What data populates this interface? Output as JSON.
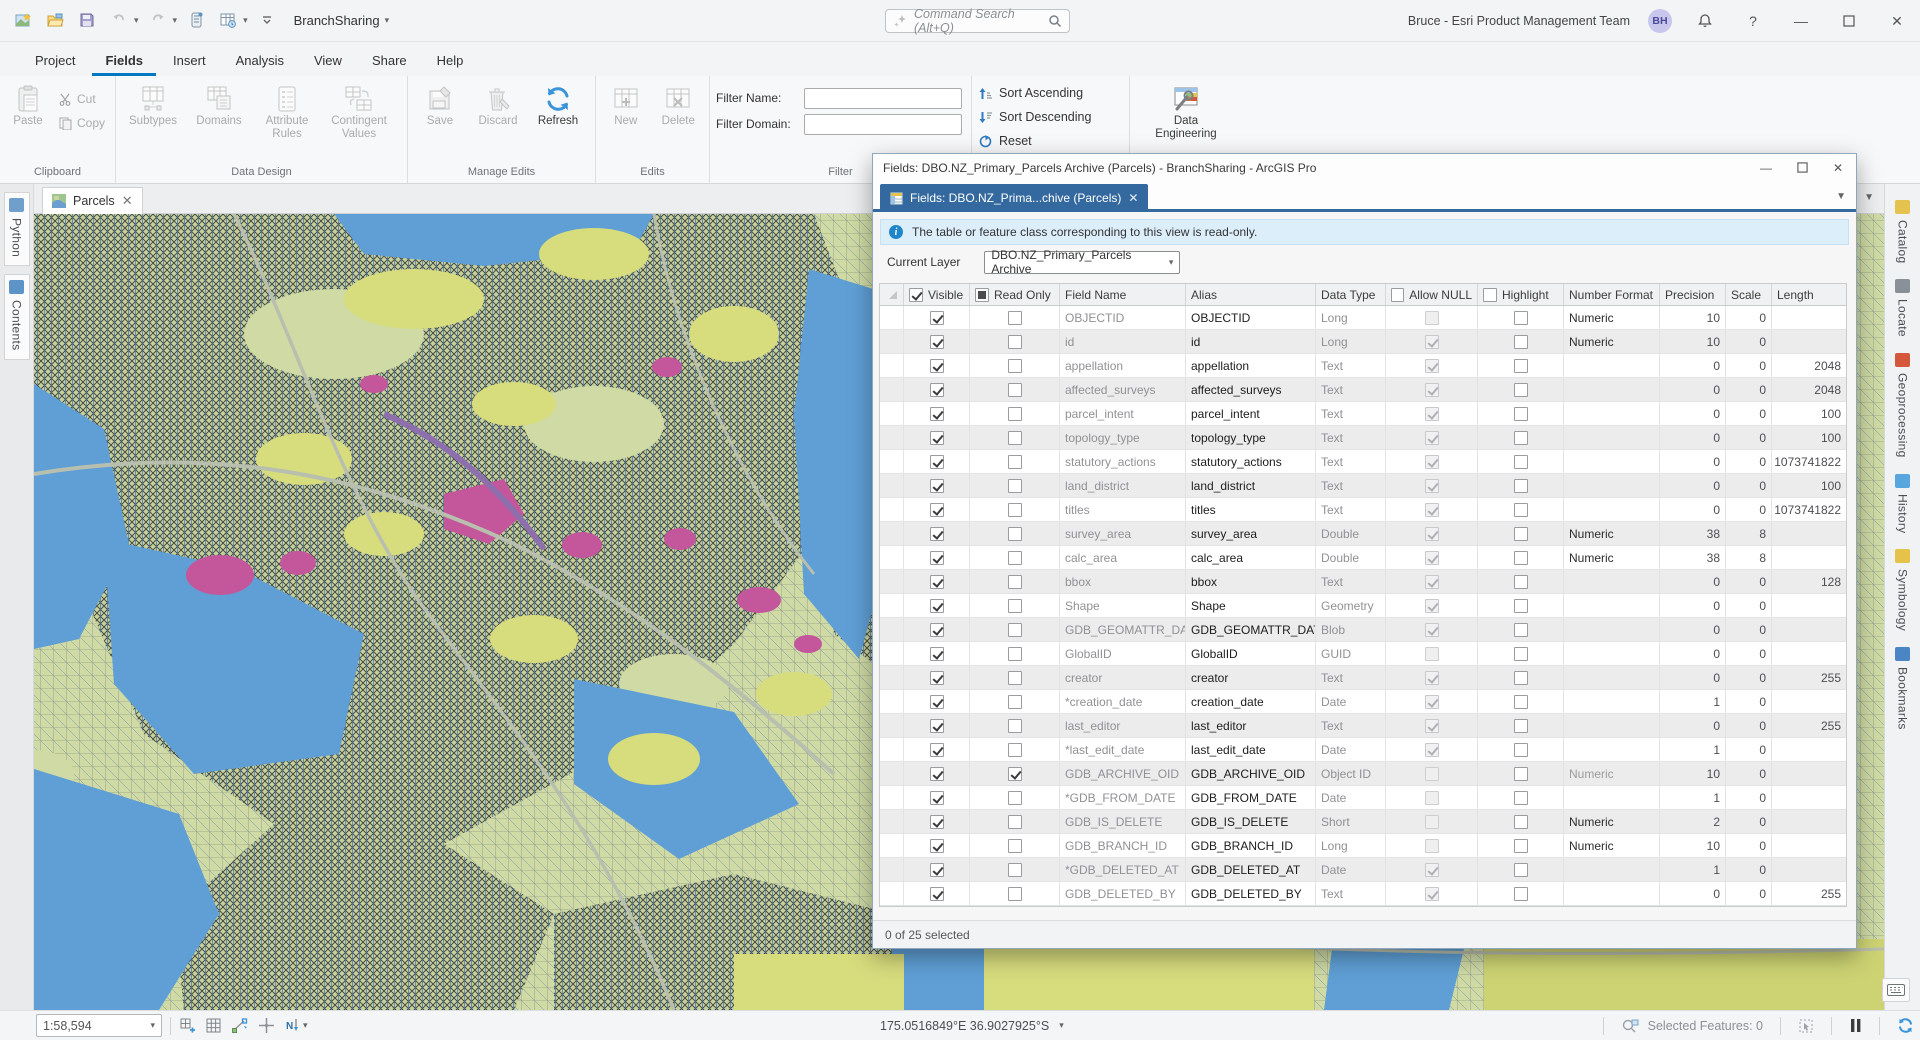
{
  "titlebar": {
    "project_name": "BranchSharing",
    "search_placeholder": "Command Search (Alt+Q)",
    "user_name": "Bruce - Esri Product Management Team",
    "avatar_initials": "BH"
  },
  "ribbon": {
    "tabs": [
      "Project",
      "Fields",
      "Insert",
      "Analysis",
      "View",
      "Share",
      "Help"
    ],
    "active_tab": "Fields",
    "clipboard": {
      "label": "Clipboard",
      "paste": "Paste",
      "cut": "Cut",
      "copy": "Copy"
    },
    "data_design": {
      "label": "Data Design",
      "subtypes": "Subtypes",
      "domains": "Domains",
      "attribute_rules": "Attribute Rules",
      "contingent_values": "Contingent Values"
    },
    "manage_edits": {
      "label": "Manage Edits",
      "save": "Save",
      "discard": "Discard",
      "refresh": "Refresh"
    },
    "edits": {
      "label": "Edits",
      "new": "New",
      "delete": "Delete"
    },
    "filter": {
      "label": "Filter",
      "name_label": "Filter Name:",
      "domain_label": "Filter Domain:"
    },
    "sort": {
      "ascending": "Sort Ascending",
      "descending": "Sort Descending",
      "reset": "Reset"
    },
    "data_engineering": {
      "label": "Data Engineering"
    }
  },
  "map": {
    "tab_label": "Parcels"
  },
  "left_dock": {
    "items": [
      {
        "label": "Python",
        "icon": "python-notebook-icon",
        "color": "#6f9fca"
      },
      {
        "label": "Contents",
        "icon": "contents-list-icon",
        "color": "#5d94c8"
      }
    ]
  },
  "right_dock": {
    "items": [
      {
        "label": "Catalog",
        "icon": "catalog-icon",
        "color": "#e3c24e"
      },
      {
        "label": "Locate",
        "icon": "locate-binoculars-icon",
        "color": "#8a9097"
      },
      {
        "label": "Geoprocessing",
        "icon": "geoprocessing-toolbox-icon",
        "color": "#d4593c"
      },
      {
        "label": "History",
        "icon": "history-clock-icon",
        "color": "#57a6dd"
      },
      {
        "label": "Symbology",
        "icon": "symbology-brush-icon",
        "color": "#e5c34a"
      },
      {
        "label": "Bookmarks",
        "icon": "bookmarks-icon",
        "color": "#4a86c6"
      }
    ]
  },
  "fields_window": {
    "title": "Fields: DBO.NZ_Primary_Parcels Archive (Parcels) - BranchSharing - ArcGIS Pro",
    "tab_label": "Fields: DBO.NZ_Prima...chive (Parcels)",
    "info_text": "The table or feature class corresponding to this view is read-only.",
    "current_layer_label": "Current Layer",
    "current_layer_value": "DBO.NZ_Primary_Parcels Archive",
    "status_text": "0 of 25 selected",
    "columns": [
      "Visible",
      "Read Only",
      "Field Name",
      "Alias",
      "Data Type",
      "Allow NULL",
      "Highlight",
      "Number Format",
      "Precision",
      "Scale",
      "Length"
    ],
    "rows": [
      {
        "visible": true,
        "read_only": false,
        "field_name": "OBJECTID",
        "alias": "OBJECTID",
        "data_type": "Long",
        "allow_null": "disabled",
        "number_format": "Numeric",
        "precision": "10",
        "scale": "0",
        "length": ""
      },
      {
        "visible": true,
        "read_only": false,
        "field_name": "id",
        "alias": "id",
        "data_type": "Long",
        "allow_null": "checked",
        "number_format": "Numeric",
        "precision": "10",
        "scale": "0",
        "length": ""
      },
      {
        "visible": true,
        "read_only": false,
        "field_name": "appellation",
        "alias": "appellation",
        "data_type": "Text",
        "allow_null": "checked",
        "number_format": "",
        "precision": "0",
        "scale": "0",
        "length": "2048"
      },
      {
        "visible": true,
        "read_only": false,
        "field_name": "affected_surveys",
        "alias": "affected_surveys",
        "data_type": "Text",
        "allow_null": "checked",
        "number_format": "",
        "precision": "0",
        "scale": "0",
        "length": "2048"
      },
      {
        "visible": true,
        "read_only": false,
        "field_name": "parcel_intent",
        "alias": "parcel_intent",
        "data_type": "Text",
        "allow_null": "checked",
        "number_format": "",
        "precision": "0",
        "scale": "0",
        "length": "100"
      },
      {
        "visible": true,
        "read_only": false,
        "field_name": "topology_type",
        "alias": "topology_type",
        "data_type": "Text",
        "allow_null": "checked",
        "number_format": "",
        "precision": "0",
        "scale": "0",
        "length": "100"
      },
      {
        "visible": true,
        "read_only": false,
        "field_name": "statutory_actions",
        "alias": "statutory_actions",
        "data_type": "Text",
        "allow_null": "checked",
        "number_format": "",
        "precision": "0",
        "scale": "0",
        "length": "1073741822"
      },
      {
        "visible": true,
        "read_only": false,
        "field_name": "land_district",
        "alias": "land_district",
        "data_type": "Text",
        "allow_null": "checked",
        "number_format": "",
        "precision": "0",
        "scale": "0",
        "length": "100"
      },
      {
        "visible": true,
        "read_only": false,
        "field_name": "titles",
        "alias": "titles",
        "data_type": "Text",
        "allow_null": "checked",
        "number_format": "",
        "precision": "0",
        "scale": "0",
        "length": "1073741822"
      },
      {
        "visible": true,
        "read_only": false,
        "field_name": "survey_area",
        "alias": "survey_area",
        "data_type": "Double",
        "allow_null": "checked",
        "number_format": "Numeric",
        "precision": "38",
        "scale": "8",
        "length": ""
      },
      {
        "visible": true,
        "read_only": false,
        "field_name": "calc_area",
        "alias": "calc_area",
        "data_type": "Double",
        "allow_null": "checked",
        "number_format": "Numeric",
        "precision": "38",
        "scale": "8",
        "length": ""
      },
      {
        "visible": true,
        "read_only": false,
        "field_name": "bbox",
        "alias": "bbox",
        "data_type": "Text",
        "allow_null": "checked",
        "number_format": "",
        "precision": "0",
        "scale": "0",
        "length": "128"
      },
      {
        "visible": true,
        "read_only": false,
        "field_name": "Shape",
        "alias": "Shape",
        "data_type": "Geometry",
        "allow_null": "checked",
        "number_format": "",
        "precision": "0",
        "scale": "0",
        "length": ""
      },
      {
        "visible": true,
        "read_only": false,
        "field_name": "GDB_GEOMATTR_DATA",
        "alias": "GDB_GEOMATTR_DATA",
        "data_type": "Blob",
        "allow_null": "checked",
        "number_format": "",
        "precision": "0",
        "scale": "0",
        "length": ""
      },
      {
        "visible": true,
        "read_only": false,
        "field_name": "GlobalID",
        "alias": "GlobalID",
        "data_type": "GUID",
        "allow_null": "disabled",
        "number_format": "",
        "precision": "0",
        "scale": "0",
        "length": ""
      },
      {
        "visible": true,
        "read_only": false,
        "field_name": "creator",
        "alias": "creator",
        "data_type": "Text",
        "allow_null": "checked",
        "number_format": "",
        "precision": "0",
        "scale": "0",
        "length": "255"
      },
      {
        "visible": true,
        "read_only": false,
        "field_name": "*creation_date",
        "alias": "creation_date",
        "data_type": "Date",
        "allow_null": "checked",
        "number_format": "",
        "precision": "1",
        "scale": "0",
        "length": ""
      },
      {
        "visible": true,
        "read_only": false,
        "field_name": "last_editor",
        "alias": "last_editor",
        "data_type": "Text",
        "allow_null": "checked",
        "number_format": "",
        "precision": "0",
        "scale": "0",
        "length": "255"
      },
      {
        "visible": true,
        "read_only": false,
        "field_name": "*last_edit_date",
        "alias": "last_edit_date",
        "data_type": "Date",
        "allow_null": "checked",
        "number_format": "",
        "precision": "1",
        "scale": "0",
        "length": ""
      },
      {
        "visible": true,
        "read_only": true,
        "field_name": "GDB_ARCHIVE_OID",
        "alias": "GDB_ARCHIVE_OID",
        "data_type": "Object ID",
        "allow_null": "disabled",
        "number_format": "Numeric",
        "nf_gray": true,
        "precision": "10",
        "scale": "0",
        "length": ""
      },
      {
        "visible": true,
        "read_only": false,
        "field_name": "*GDB_FROM_DATE",
        "alias": "GDB_FROM_DATE",
        "data_type": "Date",
        "allow_null": "disabled",
        "number_format": "",
        "precision": "1",
        "scale": "0",
        "length": ""
      },
      {
        "visible": true,
        "read_only": false,
        "field_name": "GDB_IS_DELETE",
        "alias": "GDB_IS_DELETE",
        "data_type": "Short",
        "allow_null": "disabled",
        "number_format": "Numeric",
        "precision": "2",
        "scale": "0",
        "length": ""
      },
      {
        "visible": true,
        "read_only": false,
        "field_name": "GDB_BRANCH_ID",
        "alias": "GDB_BRANCH_ID",
        "data_type": "Long",
        "allow_null": "disabled",
        "number_format": "Numeric",
        "precision": "10",
        "scale": "0",
        "length": ""
      },
      {
        "visible": true,
        "read_only": false,
        "field_name": "*GDB_DELETED_AT",
        "alias": "GDB_DELETED_AT",
        "data_type": "Date",
        "allow_null": "checked",
        "number_format": "",
        "precision": "1",
        "scale": "0",
        "length": ""
      },
      {
        "visible": true,
        "read_only": false,
        "field_name": "GDB_DELETED_BY",
        "alias": "GDB_DELETED_BY",
        "data_type": "Text",
        "allow_null": "checked",
        "number_format": "",
        "precision": "0",
        "scale": "0",
        "length": "255"
      }
    ]
  },
  "statusbar": {
    "scale": "1:58,594",
    "coordinates": "175.0516849°E 36.9027925°S",
    "selected_features": "Selected Features: 0"
  },
  "colors": {
    "accent_blue": "#0079c1",
    "window_tab_blue": "#33699f",
    "map_water": "#5f9fd5",
    "map_land": "#cfdaa4",
    "map_yellow": "#d7dc7d",
    "map_pink": "#c4569b"
  }
}
